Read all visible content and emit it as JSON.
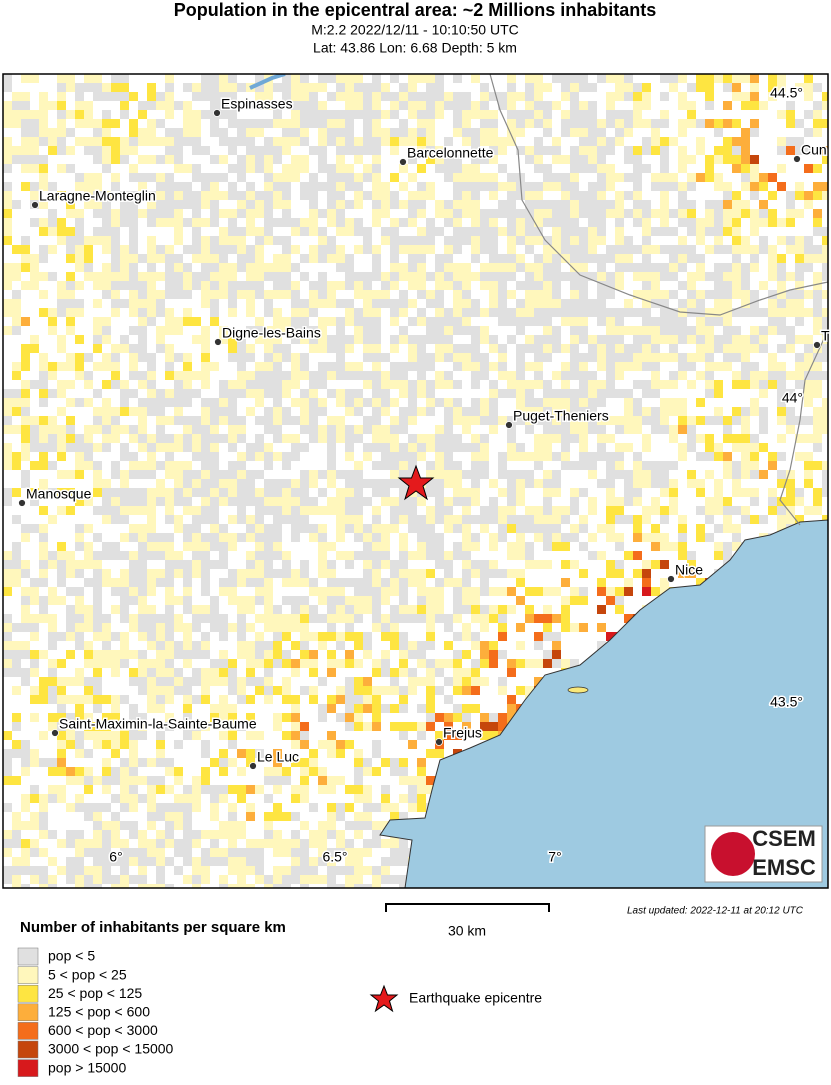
{
  "header": {
    "title": "Population in the epicentral area: ~2 Millions inhabitants",
    "line1": "M:2.2 2022/12/11 - 10:10:50 UTC",
    "line2": "Lat: 43.86 Lon: 6.68 Depth: 5 km"
  },
  "map": {
    "lat_ticks": [
      "44.5°",
      "44°",
      "43.5°"
    ],
    "lon_ticks": [
      "6°",
      "6.5°",
      "7°"
    ],
    "cities": [
      "Espinasses",
      "Barcelonnette",
      "Laragne-Monteglin",
      "Digne-les-Bains",
      "Puget-Theniers",
      "Manosque",
      "Nice",
      "Saint-Maximin-la-Sainte-Baume",
      "Frejus",
      "Le Luc",
      "Cun",
      "T"
    ],
    "scale": "30 km",
    "last_updated": "Last updated: 2022-12-11 at 20:12 UTC",
    "logo": [
      "CSEM",
      "EMSC"
    ]
  },
  "legend": {
    "title": "Number of inhabitants per square km",
    "items": [
      "pop < 5",
      "5 < pop < 25",
      "25 < pop < 125",
      "125 < pop < 600",
      "600 < pop < 3000",
      "3000 < pop < 15000",
      "pop > 15000"
    ],
    "epicentre": "Earthquake epicentre"
  }
}
